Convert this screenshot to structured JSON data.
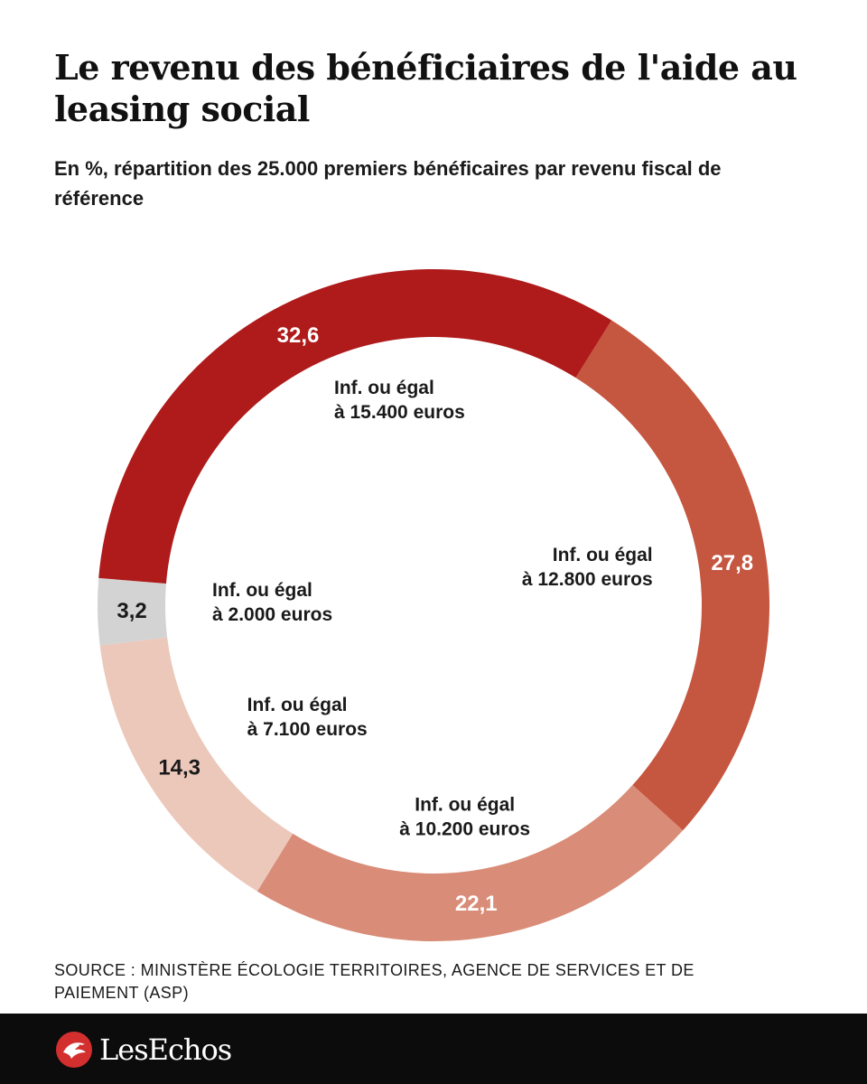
{
  "title": "Le revenu des bénéficiaires de l'aide au leasing social",
  "subtitle": "En %, répartition des 25.000 premiers bénéficaires par revenu fiscal de référence",
  "source": "SOURCE : MINISTÈRE ÉCOLOGIE TERRITOIRES, AGENCE DE SERVICES ET DE PAIEMENT (ASP)",
  "brand": "LesEchos",
  "chart_data": {
    "type": "pie",
    "donut": true,
    "title": "Le revenu des bénéficiaires de l'aide au leasing social",
    "subtitle": "En %, répartition des 25.000 premiers bénéficaires par revenu fiscal de référence",
    "unit": "%",
    "decimal_separator": ",",
    "slices": [
      {
        "label_lines": [
          "Inf. ou égal",
          "à 12.800 euros"
        ],
        "value": 27.8,
        "color": "#c55640",
        "value_color": "#ffffff"
      },
      {
        "label_lines": [
          "Inf. ou égal",
          "à 10.200 euros"
        ],
        "value": 22.1,
        "color": "#d98c77",
        "value_color": "#ffffff"
      },
      {
        "label_lines": [
          "Inf. ou égal",
          "à 7.100 euros"
        ],
        "value": 14.3,
        "color": "#ecc8bb",
        "value_color": "#1a1a1a"
      },
      {
        "label_lines": [
          "Inf. ou égal",
          "à 2.000 euros"
        ],
        "value": 3.2,
        "color": "#d3d3d3",
        "value_color": "#1a1a1a"
      },
      {
        "label_lines": [
          "Inf. ou égal",
          "à 15.400 euros"
        ],
        "value": 32.6,
        "color": "#af1a1a",
        "value_color": "#ffffff"
      }
    ]
  }
}
